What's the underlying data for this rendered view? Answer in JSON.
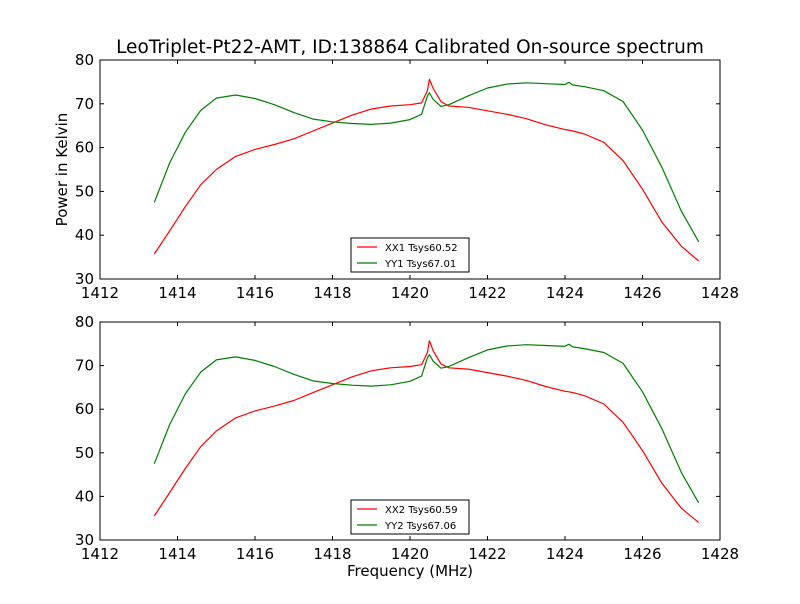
{
  "title": "LeoTriplet-Pt22-AMT, ID:138864 Calibrated On-source spectrum",
  "colors": {
    "xx": "#ff0000",
    "yy": "#008000"
  },
  "chart_data": [
    {
      "type": "line",
      "title": "LeoTriplet-Pt22-AMT, ID:138864 Calibrated On-source spectrum",
      "xlabel": "",
      "ylabel": "Power in Kelvin",
      "xlim": [
        1412,
        1428
      ],
      "ylim": [
        30,
        80
      ],
      "xticks": [
        "1412",
        "1414",
        "1416",
        "1418",
        "1420",
        "1422",
        "1424",
        "1426",
        "1428"
      ],
      "yticks": [
        "30",
        "40",
        "50",
        "60",
        "70",
        "80"
      ],
      "legend_position": "lower-center",
      "x": [
        1413.4,
        1413.8,
        1414.2,
        1414.6,
        1415.0,
        1415.5,
        1416.0,
        1416.5,
        1417.0,
        1417.5,
        1418.0,
        1418.5,
        1419.0,
        1419.5,
        1420.0,
        1420.3,
        1420.45,
        1420.5,
        1420.6,
        1420.8,
        1421.0,
        1421.5,
        1422.0,
        1422.5,
        1423.0,
        1423.5,
        1424.0,
        1424.1,
        1424.2,
        1424.5,
        1425.0,
        1425.5,
        1426.0,
        1426.5,
        1427.0,
        1427.45
      ],
      "series": [
        {
          "name": "XX1 Tsys60.52",
          "color": "#ff0000",
          "values": [
            35.7,
            41.0,
            46.5,
            51.5,
            55.0,
            58.0,
            59.6,
            60.7,
            62.0,
            63.8,
            65.6,
            67.4,
            68.8,
            69.5,
            69.8,
            70.2,
            73.0,
            75.6,
            73.5,
            70.5,
            69.5,
            69.2,
            68.4,
            67.6,
            66.6,
            65.2,
            64.1,
            64.0,
            63.8,
            63.1,
            61.2,
            57.0,
            50.5,
            43.0,
            37.5,
            34.1
          ]
        },
        {
          "name": "YY1 Tsys67.01",
          "color": "#008000",
          "values": [
            47.5,
            56.5,
            63.5,
            68.5,
            71.3,
            72.0,
            71.2,
            69.8,
            68.0,
            66.5,
            65.9,
            65.5,
            65.3,
            65.6,
            66.4,
            67.6,
            71.8,
            72.5,
            71.0,
            69.4,
            69.8,
            71.8,
            73.6,
            74.5,
            74.8,
            74.6,
            74.4,
            74.9,
            74.3,
            73.9,
            73.0,
            70.5,
            64.0,
            55.5,
            45.5,
            38.5
          ]
        }
      ]
    },
    {
      "type": "line",
      "title": "",
      "xlabel": "Frequency (MHz)",
      "ylabel": "",
      "xlim": [
        1412,
        1428
      ],
      "ylim": [
        30,
        80
      ],
      "xticks": [
        "1412",
        "1414",
        "1416",
        "1418",
        "1420",
        "1422",
        "1424",
        "1426",
        "1428"
      ],
      "yticks": [
        "30",
        "40",
        "50",
        "60",
        "70",
        "80"
      ],
      "legend_position": "lower-center",
      "x": [
        1413.4,
        1413.8,
        1414.2,
        1414.6,
        1415.0,
        1415.5,
        1416.0,
        1416.5,
        1417.0,
        1417.5,
        1418.0,
        1418.5,
        1419.0,
        1419.5,
        1420.0,
        1420.3,
        1420.45,
        1420.5,
        1420.6,
        1420.8,
        1421.0,
        1421.5,
        1422.0,
        1422.5,
        1423.0,
        1423.5,
        1424.0,
        1424.1,
        1424.2,
        1424.5,
        1425.0,
        1425.5,
        1426.0,
        1426.5,
        1427.0,
        1427.45
      ],
      "series": [
        {
          "name": "XX2 Tsys60.59",
          "color": "#ff0000",
          "values": [
            35.5,
            40.9,
            46.4,
            51.4,
            55.0,
            58.0,
            59.6,
            60.7,
            62.0,
            63.8,
            65.6,
            67.4,
            68.8,
            69.5,
            69.8,
            70.2,
            73.0,
            75.7,
            73.4,
            70.4,
            69.5,
            69.2,
            68.4,
            67.6,
            66.6,
            65.2,
            64.1,
            64.0,
            63.8,
            63.1,
            61.2,
            57.0,
            50.5,
            43.0,
            37.3,
            34.0
          ]
        },
        {
          "name": "YY2 Tsys67.06",
          "color": "#008000",
          "values": [
            47.5,
            56.5,
            63.5,
            68.5,
            71.3,
            72.0,
            71.2,
            69.8,
            68.0,
            66.5,
            65.9,
            65.5,
            65.3,
            65.6,
            66.4,
            67.6,
            71.8,
            72.5,
            71.0,
            69.4,
            69.8,
            71.8,
            73.6,
            74.5,
            74.8,
            74.6,
            74.4,
            74.9,
            74.3,
            73.9,
            73.0,
            70.5,
            64.0,
            55.5,
            45.5,
            38.5
          ]
        }
      ]
    }
  ]
}
